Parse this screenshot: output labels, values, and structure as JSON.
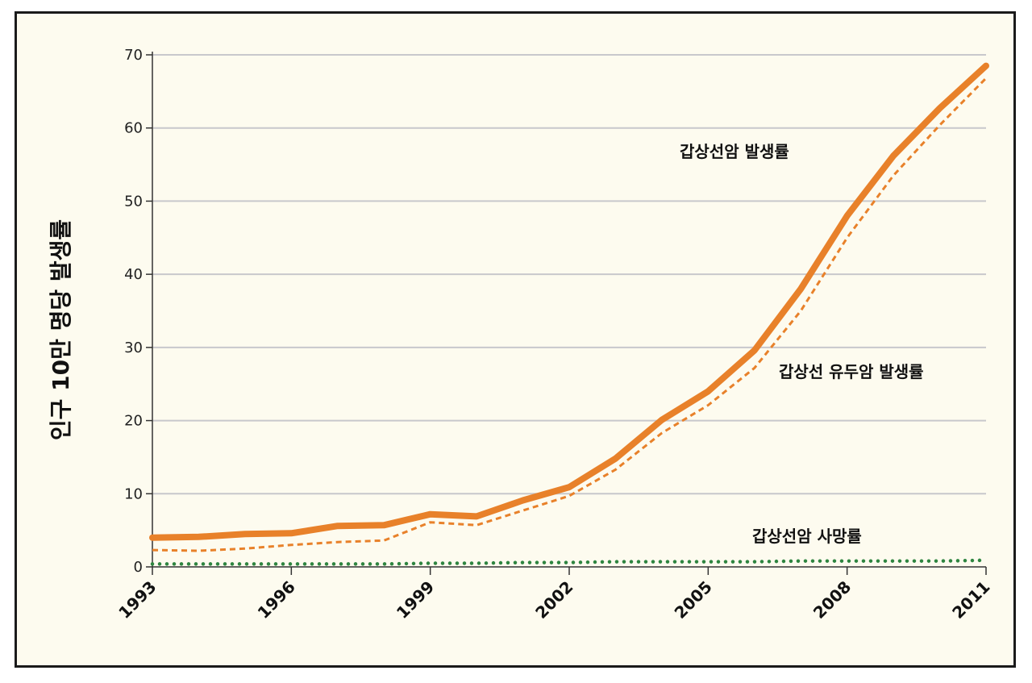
{
  "chart_data": {
    "type": "line",
    "title": "",
    "xlabel": "",
    "ylabel": "인구 10만 명당 발생률",
    "x_ticks": [
      "1993",
      "1996",
      "1999",
      "2002",
      "2005",
      "2008",
      "2011"
    ],
    "y_ticks": [
      "0",
      "10",
      "20",
      "30",
      "40",
      "50",
      "60",
      "70"
    ],
    "xlim": [
      1993,
      2011
    ],
    "ylim": [
      0,
      70
    ],
    "grid": true,
    "x": [
      1993,
      1994,
      1995,
      1996,
      1997,
      1998,
      1999,
      2000,
      2001,
      2002,
      2003,
      2004,
      2005,
      2006,
      2007,
      2008,
      2009,
      2010,
      2011
    ],
    "series": [
      {
        "name": "갑상선암 발생률",
        "style": "solid-thick",
        "color": "#e8812a",
        "values": [
          4.0,
          4.1,
          4.5,
          4.6,
          5.6,
          5.7,
          7.2,
          6.9,
          9.1,
          10.9,
          14.8,
          20.1,
          24.0,
          29.6,
          38.0,
          48.0,
          56.2,
          62.7,
          68.5
        ]
      },
      {
        "name": "갑상선 유두암 발생률",
        "style": "dashed",
        "color": "#e8812a",
        "values": [
          2.3,
          2.2,
          2.5,
          3.0,
          3.4,
          3.6,
          6.1,
          5.7,
          7.7,
          9.7,
          13.3,
          18.3,
          22.1,
          27.2,
          35.0,
          45.0,
          53.5,
          60.4,
          66.8
        ]
      },
      {
        "name": "갑상선암 사망률",
        "style": "dotted",
        "color": "#2e8540",
        "values": [
          0.4,
          0.4,
          0.4,
          0.4,
          0.4,
          0.4,
          0.5,
          0.5,
          0.6,
          0.6,
          0.7,
          0.7,
          0.7,
          0.7,
          0.8,
          0.8,
          0.8,
          0.8,
          0.9
        ]
      }
    ]
  }
}
